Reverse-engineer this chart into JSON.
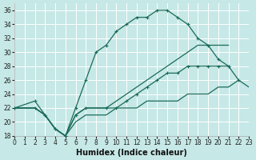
{
  "xlabel": "Humidex (Indice chaleur)",
  "bg_color": "#c6e8e6",
  "grid_color": "#b0d4d0",
  "line_color": "#1a6b5a",
  "xlim": [
    0,
    23
  ],
  "ylim": [
    18,
    37
  ],
  "xticks": [
    0,
    1,
    2,
    3,
    4,
    5,
    6,
    7,
    8,
    9,
    10,
    11,
    12,
    13,
    14,
    15,
    16,
    17,
    18,
    19,
    20,
    21,
    22,
    23
  ],
  "yticks": [
    18,
    20,
    22,
    24,
    26,
    28,
    30,
    32,
    34,
    36
  ],
  "curve1_x": [
    0,
    2,
    3,
    4,
    5,
    6,
    7,
    8,
    9,
    10,
    11,
    12,
    13,
    14,
    15,
    16,
    17,
    18,
    19,
    20,
    21
  ],
  "curve1_y": [
    22,
    23,
    21,
    19,
    18,
    22,
    26,
    30,
    31,
    33,
    34,
    35,
    35,
    36,
    36,
    35,
    34,
    32,
    31,
    29,
    28
  ],
  "curve2_x": [
    0,
    2,
    3,
    4,
    5,
    6,
    7,
    8,
    9,
    10,
    11,
    12,
    13,
    14,
    15,
    16,
    17,
    18,
    19,
    20,
    21
  ],
  "curve2_y": [
    22,
    22,
    21,
    19,
    18,
    21,
    22,
    22,
    22,
    23,
    24,
    25,
    26,
    27,
    28,
    29,
    30,
    31,
    31,
    31,
    31
  ],
  "curve3_x": [
    0,
    2,
    3,
    4,
    5,
    6,
    7,
    9,
    10,
    11,
    12,
    13,
    14,
    15,
    16,
    17,
    18,
    19,
    20,
    21,
    22
  ],
  "curve3_y": [
    22,
    22,
    21,
    19,
    18,
    21,
    22,
    22,
    22,
    23,
    24,
    25,
    26,
    27,
    27,
    28,
    28,
    28,
    28,
    28,
    26
  ],
  "curve4_x": [
    0,
    2,
    3,
    4,
    5,
    6,
    7,
    9,
    10,
    11,
    12,
    13,
    14,
    15,
    16,
    17,
    18,
    19,
    20,
    21,
    22,
    23
  ],
  "curve4_y": [
    22,
    22,
    21,
    19,
    18,
    20,
    21,
    21,
    22,
    22,
    22,
    23,
    23,
    23,
    23,
    24,
    24,
    24,
    25,
    25,
    26,
    25
  ]
}
